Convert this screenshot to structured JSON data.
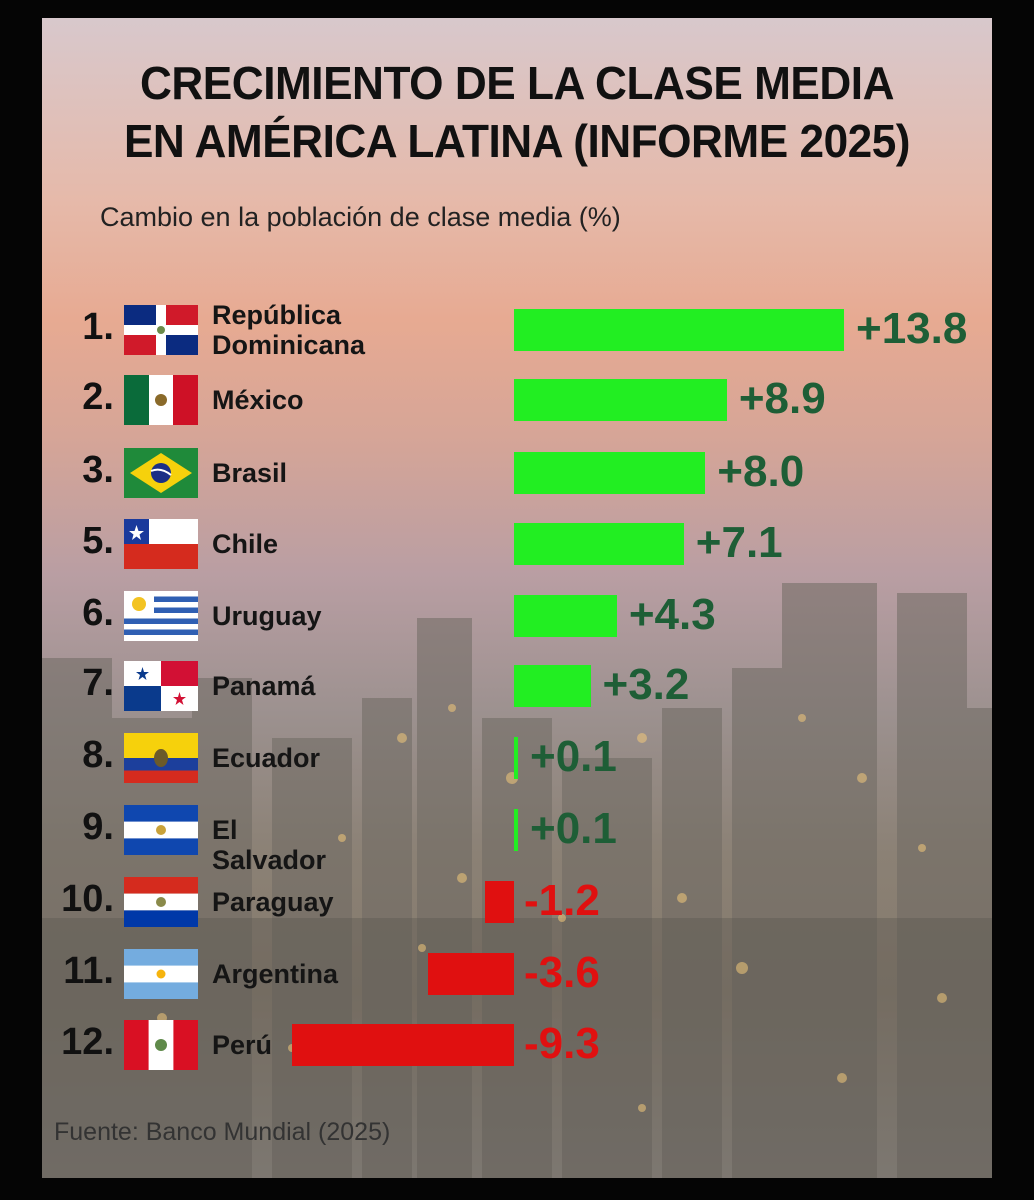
{
  "title_line1": "CRECIMIENTO DE LA CLASE MEDIA",
  "title_line2": "EN AMÉRICA LATINA (INFORME 2025)",
  "subtitle": "Cambio en la población de clase media (%)",
  "source": "Fuente: Banco Mundial (2025)",
  "colors": {
    "positive_bar": "#22ee22",
    "positive_text": "#1e5e36",
    "negative_bar": "#e01010",
    "negative_text": "#e01010"
  },
  "chart_data": {
    "type": "bar",
    "orientation": "horizontal",
    "title": "CRECIMIENTO DE LA CLASE MEDIA EN AMÉRICA LATINA (INFORME 2025)",
    "subtitle": "Cambio en la población de clase media (%)",
    "ranks": [
      "1.",
      "2.",
      "3.",
      "5.",
      "6.",
      "7.",
      "8.",
      "9.",
      "10.",
      "11.",
      "12."
    ],
    "categories": [
      "República Dominicana",
      "México",
      "Brasil",
      "Chile",
      "Uruguay",
      "Panamá",
      "Ecuador",
      "El Salvador",
      "Paraguay",
      "Argentina",
      "Perú"
    ],
    "category_lines": [
      [
        "República",
        "Dominicana"
      ],
      [
        "México"
      ],
      [
        "Brasil"
      ],
      [
        "Chile"
      ],
      [
        "Uruguay"
      ],
      [
        "Panamá"
      ],
      [
        "Ecuador"
      ],
      [
        "El Salvador"
      ],
      [
        "Paraguay"
      ],
      [
        "Argentina"
      ],
      [
        "Perú"
      ]
    ],
    "values": [
      13.8,
      8.9,
      8.0,
      7.1,
      4.3,
      3.2,
      0.1,
      0.1,
      -1.2,
      -3.6,
      -9.3
    ],
    "labels": [
      "+13.8",
      "+8.9",
      "+8.0",
      "+7.1",
      "+4.3",
      "+3.2",
      "+0.1",
      "+0.1",
      "-1.2",
      "-3.6",
      "-9.3"
    ],
    "flag_icons": [
      "flag-dominican-republic-icon",
      "flag-mexico-icon",
      "flag-brazil-icon",
      "flag-chile-icon",
      "flag-uruguay-icon",
      "flag-panama-icon",
      "flag-ecuador-icon",
      "flag-el-salvador-icon",
      "flag-paraguay-icon",
      "flag-argentina-icon",
      "flag-peru-icon"
    ],
    "source": "Fuente: Banco Mundial (2025)"
  }
}
